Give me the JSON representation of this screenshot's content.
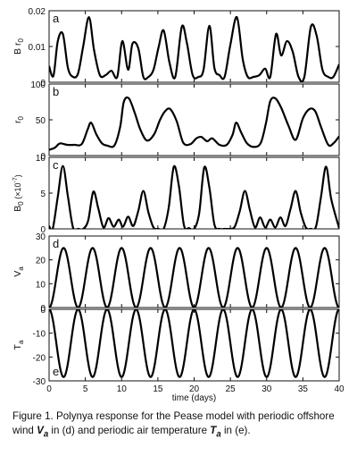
{
  "chart_data": {
    "type": "line",
    "xlabel": "time (days)",
    "xlim": [
      0,
      40
    ],
    "x_ticks": [
      0,
      5,
      10,
      15,
      20,
      25,
      30,
      35,
      40
    ],
    "x_tick_labels": [
      "0",
      "5",
      "10",
      "15",
      "20",
      "25",
      "30",
      "35",
      "40"
    ],
    "panels": [
      {
        "letter": "a",
        "ylabel": "B r",
        "ylabel_sub": "0",
        "ylim": [
          0,
          0.02
        ],
        "y_ticks": [
          0,
          0.01,
          0.02
        ],
        "y_tick_labels": [
          "0",
          "0.01",
          "0.02"
        ],
        "x": [
          0,
          0.6,
          1.2,
          1.9,
          2.6,
          3.3,
          4.0,
          4.7,
          5.5,
          6.2,
          7.0,
          7.8,
          8.6,
          9.4,
          10.1,
          10.9,
          11.5,
          12.3,
          13.0,
          13.7,
          14.4,
          15.1,
          15.8,
          16.6,
          17.4,
          18.3,
          19.0,
          19.8,
          20.6,
          21.3,
          22.1,
          22.8,
          23.5,
          24.2,
          25.0,
          25.9,
          26.7,
          27.4,
          28.2,
          29.0,
          29.8,
          30.5,
          31.3,
          32.0,
          32.8,
          33.6,
          34.4,
          35.2,
          36.1,
          36.9,
          37.7,
          38.5,
          39.2,
          40.0
        ],
        "values": [
          0.0045,
          0.0018,
          0.0115,
          0.0135,
          0.004,
          0.0015,
          0.0025,
          0.01,
          0.0182,
          0.009,
          0.002,
          0.002,
          0.0032,
          0.0015,
          0.0115,
          0.0035,
          0.0108,
          0.0095,
          0.0015,
          0.0015,
          0.0035,
          0.0098,
          0.0145,
          0.0055,
          0.0015,
          0.0155,
          0.011,
          0.002,
          0.0015,
          0.0035,
          0.0158,
          0.004,
          0.002,
          0.0015,
          0.0105,
          0.0182,
          0.0065,
          0.0015,
          0.0015,
          0.002,
          0.0038,
          0.0015,
          0.0135,
          0.0075,
          0.0115,
          0.0085,
          0.0015,
          0.0015,
          0.0155,
          0.013,
          0.0035,
          0.0015,
          0.0015,
          0.005
        ]
      },
      {
        "letter": "b",
        "ylabel": "r",
        "ylabel_sub": "0",
        "ylim": [
          0,
          100
        ],
        "y_ticks": [
          0,
          50,
          100
        ],
        "y_tick_labels": [
          "0",
          "50",
          "100"
        ],
        "x": [
          0,
          0.8,
          1.5,
          2.5,
          3.5,
          4.5,
          5.3,
          5.8,
          6.5,
          7.3,
          8.0,
          9.0,
          9.8,
          10.3,
          11.0,
          11.8,
          12.6,
          13.5,
          14.5,
          15.3,
          16.0,
          16.7,
          17.6,
          18.5,
          19.5,
          20.3,
          21.0,
          21.8,
          22.5,
          23.5,
          24.5,
          25.3,
          25.8,
          26.5,
          27.3,
          28.3,
          29.2,
          29.9,
          30.5,
          31.2,
          32.0,
          33.0,
          34.0,
          35.0,
          35.9,
          36.7,
          37.5,
          38.5,
          39.3,
          40.0
        ],
        "values": [
          8,
          11,
          17,
          15,
          15,
          16,
          36,
          46,
          30,
          17,
          14,
          14,
          40,
          75,
          80,
          60,
          36,
          21,
          30,
          50,
          62,
          65,
          48,
          18,
          16,
          24,
          26,
          20,
          24,
          15,
          15,
          29,
          46,
          32,
          17,
          12,
          18,
          45,
          76,
          80,
          67,
          42,
          22,
          52,
          65,
          62,
          40,
          15,
          18,
          27
        ]
      },
      {
        "letter": "c",
        "ylabel": "B",
        "ylabel_sub": "0",
        "ylabel_unit": "(×10",
        "ylabel_unit_exp": "-7",
        "ylabel_unit_close": ")",
        "ylim": [
          0,
          10
        ],
        "y_ticks": [
          0,
          5,
          10
        ],
        "y_tick_labels": [
          "0",
          "5",
          "10"
        ],
        "x": [
          0,
          0.5,
          1.2,
          1.9,
          2.6,
          3.3,
          4.0,
          4.7,
          5.4,
          6.1,
          6.8,
          7.5,
          8.2,
          8.9,
          9.6,
          10.2,
          10.9,
          11.6,
          12.3,
          13.0,
          13.7,
          14.4,
          15.1,
          15.8,
          16.5,
          17.2,
          17.9,
          18.6,
          19.3,
          20.0,
          20.7,
          21.4,
          22.1,
          22.8,
          23.5,
          24.2,
          24.9,
          25.6,
          26.3,
          27.0,
          27.7,
          28.4,
          29.1,
          29.8,
          30.5,
          31.2,
          31.9,
          32.6,
          33.3,
          34.0,
          34.7,
          35.4,
          36.1,
          36.8,
          37.5,
          38.2,
          38.9,
          40.0
        ],
        "values": [
          0.4,
          0,
          4.5,
          8.8,
          4.5,
          0.2,
          0,
          0,
          1.2,
          5.2,
          2.8,
          0.2,
          1.5,
          0.3,
          1.3,
          0.3,
          1.7,
          0.4,
          2.5,
          5.3,
          2.3,
          0.2,
          0,
          0,
          3.0,
          8.7,
          6.0,
          0.5,
          0.1,
          0,
          2.2,
          8.6,
          5.8,
          0.6,
          0,
          0,
          0,
          0.3,
          2.5,
          5.3,
          2.6,
          0.2,
          1.6,
          0.2,
          1.3,
          0.2,
          1.6,
          0.4,
          2.8,
          5.3,
          2.3,
          0.2,
          0,
          0.3,
          4.5,
          8.7,
          4.2,
          0.1
        ]
      },
      {
        "letter": "d",
        "ylabel": "V",
        "ylabel_sub": "a",
        "ylim": [
          0,
          30
        ],
        "y_ticks": [
          0,
          10,
          20,
          30
        ],
        "y_tick_labels": [
          "0",
          "10",
          "20",
          "30"
        ],
        "function": "sine",
        "period": 4,
        "amplitude": 12.5,
        "offset": 12.5,
        "first_peak": 2.0
      },
      {
        "letter": "e",
        "ylabel": "T",
        "ylabel_sub": "a",
        "ylim": [
          -30,
          0
        ],
        "y_ticks": [
          -30,
          -20,
          -10,
          0
        ],
        "y_tick_labels": [
          "-30",
          "-20",
          "-10",
          "0"
        ],
        "function": "sine",
        "period": 4,
        "amplitude": 14.2,
        "offset": -14.2,
        "first_peak": 0.0
      }
    ]
  },
  "caption": {
    "part1": "Figure 1. Polynya response for the Pease model with periodic offshore wind ",
    "var1": "V",
    "var1_sub": "a",
    "part2": " in (d) and periodic air temperature ",
    "var2": "T",
    "var2_sub": "a",
    "part3": " in (e)."
  }
}
